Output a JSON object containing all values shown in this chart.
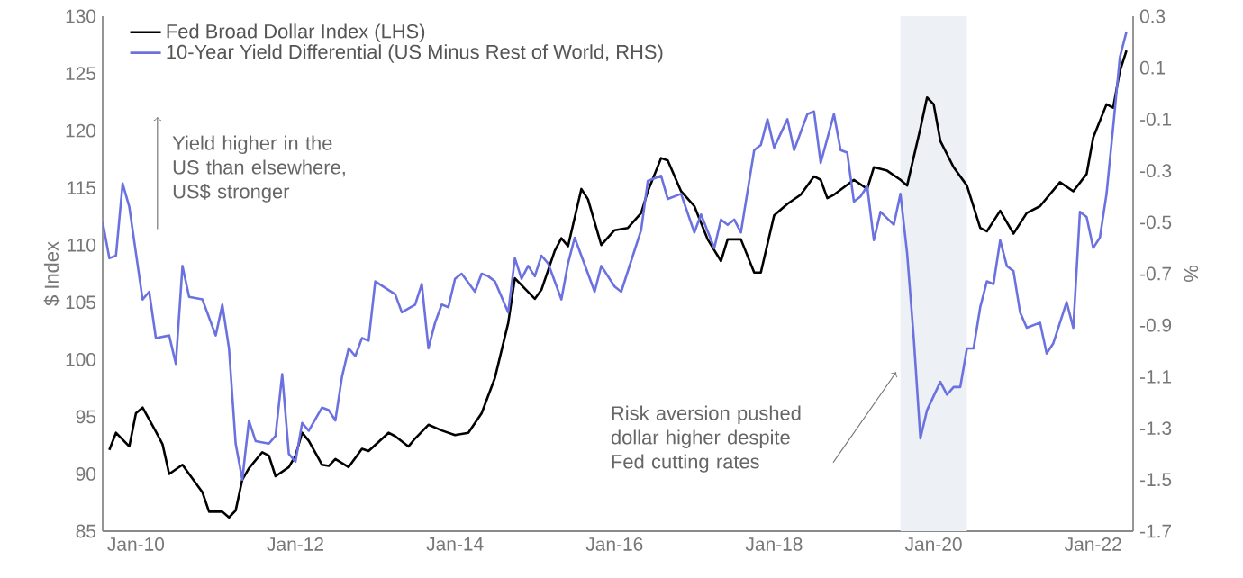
{
  "chart_data": {
    "type": "line",
    "xlim": [
      "2009-08",
      "2022-07"
    ],
    "xticks": [
      {
        "value": "2010-01",
        "label": "Jan-10"
      },
      {
        "value": "2012-01",
        "label": "Jan-12"
      },
      {
        "value": "2014-01",
        "label": "Jan-14"
      },
      {
        "value": "2016-01",
        "label": "Jan-16"
      },
      {
        "value": "2018-01",
        "label": "Jan-18"
      },
      {
        "value": "2020-01",
        "label": "Jan-20"
      },
      {
        "value": "2022-01",
        "label": "Jan-22"
      }
    ],
    "ylim": [
      85,
      130
    ],
    "yticks": [
      85,
      90,
      95,
      100,
      105,
      110,
      115,
      120,
      125,
      130
    ],
    "y2lim": [
      -1.7,
      0.3
    ],
    "y2ticks": [
      -1.7,
      -1.5,
      -1.3,
      -1.1,
      -0.9,
      -0.7,
      -0.5,
      -0.3,
      -0.1,
      0.1,
      0.3
    ],
    "ylabel": "$ Index",
    "y2label": "%",
    "legend": "top left",
    "bands": [
      {
        "axis": "x",
        "from": "2019-08",
        "to": "2020-06",
        "color": "#edf0f4"
      }
    ],
    "annotations": [
      "Yield higher in the US than elsewhere, US$ stronger",
      "Risk aversion pushed dollar higher despite Fed cutting rates"
    ],
    "series": [
      {
        "name": "Fed Broad Dollar Index (LHS)",
        "color": "#000000",
        "x": [
          "2009-09",
          "2009-10",
          "2009-12",
          "2010-01",
          "2010-02",
          "2010-04",
          "2010-05",
          "2010-06",
          "2010-08",
          "2010-09",
          "2010-11",
          "2010-12",
          "2011-02",
          "2011-03",
          "2011-04",
          "2011-05",
          "2011-06",
          "2011-08",
          "2011-09",
          "2011-10",
          "2011-12",
          "2012-01",
          "2012-02",
          "2012-03",
          "2012-05",
          "2012-06",
          "2012-07",
          "2012-09",
          "2012-11",
          "2012-12",
          "2013-03",
          "2013-04",
          "2013-06",
          "2013-07",
          "2013-09",
          "2013-11",
          "2014-01",
          "2014-03",
          "2014-05",
          "2014-07",
          "2014-09",
          "2014-10",
          "2015-01",
          "2015-02",
          "2015-04",
          "2015-05",
          "2015-06",
          "2015-07",
          "2015-08",
          "2015-09",
          "2015-11",
          "2016-01",
          "2016-03",
          "2016-05",
          "2016-06",
          "2016-08",
          "2016-09",
          "2016-11",
          "2017-01",
          "2017-03",
          "2017-05",
          "2017-06",
          "2017-08",
          "2017-10",
          "2017-11",
          "2018-01",
          "2018-03",
          "2018-05",
          "2018-07",
          "2018-08",
          "2018-09",
          "2018-10",
          "2019-01",
          "2019-03",
          "2019-04",
          "2019-06",
          "2019-08",
          "2019-09",
          "2019-11",
          "2019-12",
          "2020-01",
          "2020-02",
          "2020-04",
          "2020-06",
          "2020-08",
          "2020-09",
          "2020-11",
          "2021-01",
          "2021-03",
          "2021-05",
          "2021-08",
          "2021-10",
          "2021-12",
          "2022-01",
          "2022-03",
          "2022-04",
          "2022-05",
          "2022-06"
        ],
        "values": [
          92.1,
          93.6,
          92.4,
          95.3,
          95.8,
          93.7,
          92.6,
          90.0,
          90.8,
          90.0,
          88.4,
          86.7,
          86.7,
          86.2,
          86.8,
          89.5,
          90.5,
          91.9,
          91.6,
          89.8,
          90.6,
          91.6,
          93.6,
          92.9,
          90.8,
          90.7,
          91.3,
          90.6,
          92.2,
          92.0,
          93.6,
          93.3,
          92.4,
          93.1,
          94.3,
          93.8,
          93.4,
          93.6,
          95.3,
          98.4,
          103.2,
          107.1,
          105.3,
          106.1,
          109.5,
          110.6,
          109.9,
          112.4,
          114.9,
          114.0,
          110.0,
          111.3,
          111.5,
          112.8,
          114.7,
          117.6,
          117.4,
          114.7,
          113.4,
          110.5,
          108.6,
          110.5,
          110.5,
          107.6,
          107.6,
          112.6,
          113.6,
          114.4,
          116.0,
          115.7,
          114.1,
          114.4,
          115.7,
          114.9,
          116.8,
          116.5,
          115.7,
          115.2,
          120.2,
          122.9,
          122.3,
          119.1,
          116.8,
          115.2,
          111.5,
          111.2,
          113.0,
          111.0,
          112.8,
          113.4,
          115.5,
          114.7,
          116.2,
          119.4,
          122.3,
          122.0,
          125.2,
          127.0
        ]
      },
      {
        "name": "10-Year Yield Differential (US Minus Rest of World, RHS)",
        "color": "#6b72e0",
        "axis": "y2",
        "x": [
          "2009-08",
          "2009-09",
          "2009-10",
          "2009-11",
          "2009-12",
          "2010-02",
          "2010-03",
          "2010-04",
          "2010-06",
          "2010-07",
          "2010-08",
          "2010-09",
          "2010-11",
          "2011-01",
          "2011-02",
          "2011-03",
          "2011-04",
          "2011-05",
          "2011-06",
          "2011-07",
          "2011-09",
          "2011-10",
          "2011-11",
          "2011-12",
          "2012-01",
          "2012-02",
          "2012-03",
          "2012-05",
          "2012-06",
          "2012-07",
          "2012-08",
          "2012-09",
          "2012-10",
          "2012-11",
          "2012-12",
          "2013-01",
          "2013-04",
          "2013-05",
          "2013-07",
          "2013-08",
          "2013-09",
          "2013-10",
          "2013-11",
          "2013-12",
          "2014-01",
          "2014-02",
          "2014-04",
          "2014-05",
          "2014-06",
          "2014-07",
          "2014-09",
          "2014-10",
          "2014-11",
          "2014-12",
          "2015-01",
          "2015-02",
          "2015-03",
          "2015-05",
          "2015-06",
          "2015-07",
          "2015-10",
          "2015-11",
          "2016-01",
          "2016-02",
          "2016-04",
          "2016-05",
          "2016-06",
          "2016-08",
          "2016-09",
          "2016-11",
          "2017-01",
          "2017-02",
          "2017-04",
          "2017-05",
          "2017-06",
          "2017-07",
          "2017-08",
          "2017-10",
          "2017-11",
          "2017-12",
          "2018-01",
          "2018-03",
          "2018-04",
          "2018-06",
          "2018-07",
          "2018-08",
          "2018-10",
          "2018-11",
          "2018-12",
          "2019-01",
          "2019-02",
          "2019-03",
          "2019-04",
          "2019-05",
          "2019-07",
          "2019-08",
          "2019-09",
          "2019-10",
          "2019-11",
          "2019-12",
          "2020-02",
          "2020-03",
          "2020-04",
          "2020-05",
          "2020-06",
          "2020-07",
          "2020-08",
          "2020-09",
          "2020-10",
          "2020-11",
          "2020-12",
          "2021-01",
          "2021-02",
          "2021-03",
          "2021-05",
          "2021-06",
          "2021-07",
          "2021-09",
          "2021-10",
          "2021-11",
          "2021-12",
          "2022-01",
          "2022-02",
          "2022-03",
          "2022-04",
          "2022-05",
          "2022-06"
        ],
        "values": [
          -0.5,
          -0.64,
          -0.63,
          -0.35,
          -0.44,
          -0.8,
          -0.77,
          -0.95,
          -0.94,
          -1.05,
          -0.67,
          -0.79,
          -0.8,
          -0.94,
          -0.82,
          -0.99,
          -1.36,
          -1.5,
          -1.27,
          -1.35,
          -1.36,
          -1.33,
          -1.09,
          -1.4,
          -1.43,
          -1.28,
          -1.31,
          -1.22,
          -1.23,
          -1.27,
          -1.1,
          -0.99,
          -1.02,
          -0.95,
          -0.96,
          -0.73,
          -0.78,
          -0.85,
          -0.82,
          -0.74,
          -0.99,
          -0.89,
          -0.82,
          -0.83,
          -0.72,
          -0.7,
          -0.77,
          -0.7,
          -0.71,
          -0.73,
          -0.85,
          -0.64,
          -0.72,
          -0.67,
          -0.71,
          -0.63,
          -0.66,
          -0.8,
          -0.66,
          -0.56,
          -0.77,
          -0.67,
          -0.75,
          -0.77,
          -0.61,
          -0.53,
          -0.34,
          -0.32,
          -0.41,
          -0.39,
          -0.54,
          -0.47,
          -0.6,
          -0.49,
          -0.51,
          -0.49,
          -0.54,
          -0.22,
          -0.2,
          -0.1,
          -0.21,
          -0.1,
          -0.22,
          -0.08,
          -0.07,
          -0.27,
          -0.08,
          -0.22,
          -0.23,
          -0.42,
          -0.4,
          -0.36,
          -0.57,
          -0.46,
          -0.51,
          -0.39,
          -0.62,
          -0.95,
          -1.34,
          -1.23,
          -1.12,
          -1.17,
          -1.14,
          -1.14,
          -0.99,
          -0.99,
          -0.83,
          -0.73,
          -0.74,
          -0.57,
          -0.67,
          -0.69,
          -0.85,
          -0.91,
          -0.89,
          -1.01,
          -0.97,
          -0.81,
          -0.91,
          -0.46,
          -0.48,
          -0.6,
          -0.56,
          -0.39,
          -0.13,
          0.14,
          0.24
        ]
      }
    ]
  }
}
